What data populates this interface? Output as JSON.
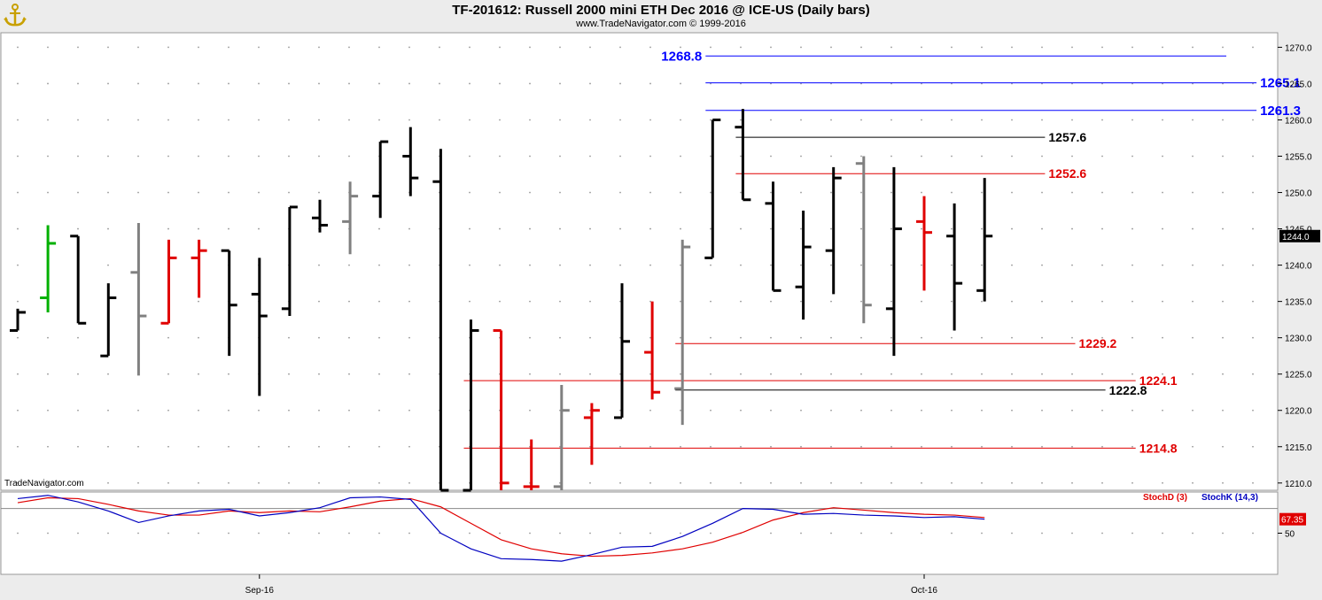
{
  "header": {
    "title": "TF-201612:  Russell 2000 mini ETH Dec 2016 @ ICE-US  (Daily bars)",
    "subtitle": "www.TradeNavigator.com © 1999-2016"
  },
  "watermark": "TradeNavigator.com",
  "icons": {
    "logo": "golden-anchor-icon"
  },
  "colors": {
    "black": "#000000",
    "red": "#e00000",
    "gray": "#808080",
    "green": "#00b000",
    "blue": "#0000ff",
    "stochD": "#e00000",
    "stochK": "#0000c0"
  },
  "chart_data": [
    {
      "type": "ohlc",
      "name": "price",
      "ylim": [
        1209,
        1272
      ],
      "yticks": [
        1210,
        1215,
        1220,
        1225,
        1230,
        1235,
        1240,
        1245,
        1250,
        1255,
        1260,
        1265,
        1270
      ],
      "ytick_labels": [
        "1210.0",
        "1215.0",
        "1220.0",
        "1225.0",
        "1230.0",
        "1235.0",
        "1240.0",
        "1245.0",
        "1250.0",
        "1255.0",
        "1260.0",
        "1265.0",
        "1270.0"
      ],
      "last_price_label": "1244.0",
      "xtick_labels": [
        {
          "bar": 8,
          "label": "Sep-16"
        },
        {
          "bar": 30,
          "label": "Oct-16"
        }
      ],
      "grid": true,
      "bars": [
        {
          "o": 1231.0,
          "h": 1234.0,
          "l": 1231.0,
          "c": 1233.5,
          "color": "black"
        },
        {
          "o": 1235.5,
          "h": 1245.5,
          "l": 1233.5,
          "c": 1243.0,
          "color": "green"
        },
        {
          "o": 1244.0,
          "h": 1244.0,
          "l": 1232.0,
          "c": 1232.0,
          "color": "black"
        },
        {
          "o": 1227.5,
          "h": 1237.5,
          "l": 1227.5,
          "c": 1235.5,
          "color": "black"
        },
        {
          "o": 1239.0,
          "h": 1245.8,
          "l": 1224.8,
          "c": 1233.0,
          "color": "gray"
        },
        {
          "o": 1232.0,
          "h": 1243.5,
          "l": 1232.0,
          "c": 1241.0,
          "color": "red"
        },
        {
          "o": 1241.0,
          "h": 1243.5,
          "l": 1235.5,
          "c": 1242.0,
          "color": "red"
        },
        {
          "o": 1242.0,
          "h": 1242.0,
          "l": 1227.5,
          "c": 1234.5,
          "color": "black"
        },
        {
          "o": 1236.0,
          "h": 1241.0,
          "l": 1222.0,
          "c": 1233.0,
          "color": "black"
        },
        {
          "o": 1234.0,
          "h": 1248.0,
          "l": 1233.0,
          "c": 1248.0,
          "color": "black"
        },
        {
          "o": 1246.5,
          "h": 1249.0,
          "l": 1244.5,
          "c": 1245.5,
          "color": "black"
        },
        {
          "o": 1246.0,
          "h": 1251.5,
          "l": 1241.5,
          "c": 1249.5,
          "color": "gray"
        },
        {
          "o": 1249.5,
          "h": 1257.0,
          "l": 1246.5,
          "c": 1257.0,
          "color": "black"
        },
        {
          "o": 1255.0,
          "h": 1259.0,
          "l": 1249.5,
          "c": 1252.0,
          "color": "black"
        },
        {
          "o": 1251.5,
          "h": 1256.0,
          "l": 1209.0,
          "c": 1209.0,
          "color": "black"
        },
        {
          "o": 1209.0,
          "h": 1232.5,
          "l": 1209.0,
          "c": 1231.0,
          "color": "black"
        },
        {
          "o": 1231.0,
          "h": 1231.0,
          "l": 1209.0,
          "c": 1210.0,
          "color": "red"
        },
        {
          "o": 1209.5,
          "h": 1216.0,
          "l": 1209.0,
          "c": 1209.5,
          "color": "red"
        },
        {
          "o": 1209.5,
          "h": 1223.5,
          "l": 1209.0,
          "c": 1220.0,
          "color": "gray"
        },
        {
          "o": 1219.0,
          "h": 1221.0,
          "l": 1212.5,
          "c": 1220.0,
          "color": "red"
        },
        {
          "o": 1219.0,
          "h": 1237.5,
          "l": 1219.0,
          "c": 1229.5,
          "color": "black"
        },
        {
          "o": 1228.0,
          "h": 1235.0,
          "l": 1221.5,
          "c": 1222.5,
          "color": "red"
        },
        {
          "o": 1223.0,
          "h": 1243.5,
          "l": 1218.0,
          "c": 1242.5,
          "color": "gray"
        },
        {
          "o": 1241.0,
          "h": 1260.0,
          "l": 1241.0,
          "c": 1260.0,
          "color": "black"
        },
        {
          "o": 1259.0,
          "h": 1261.5,
          "l": 1249.0,
          "c": 1249.0,
          "color": "black"
        },
        {
          "o": 1248.5,
          "h": 1251.5,
          "l": 1236.5,
          "c": 1236.5,
          "color": "black"
        },
        {
          "o": 1237.0,
          "h": 1247.5,
          "l": 1232.5,
          "c": 1242.5,
          "color": "black"
        },
        {
          "o": 1242.0,
          "h": 1253.5,
          "l": 1236.0,
          "c": 1252.0,
          "color": "black"
        },
        {
          "o": 1254.0,
          "h": 1255.0,
          "l": 1232.0,
          "c": 1234.5,
          "color": "gray"
        },
        {
          "o": 1234.0,
          "h": 1253.5,
          "l": 1227.5,
          "c": 1245.0,
          "color": "black"
        },
        {
          "o": 1246.0,
          "h": 1249.5,
          "l": 1236.5,
          "c": 1244.5,
          "color": "red"
        },
        {
          "o": 1244.0,
          "h": 1248.5,
          "l": 1231.0,
          "c": 1237.5,
          "color": "black"
        },
        {
          "o": 1236.5,
          "h": 1252.0,
          "l": 1235.0,
          "c": 1244.0,
          "color": "black"
        }
      ],
      "levels": [
        {
          "value": 1268.8,
          "label": "1268.8",
          "color": "blue",
          "from_bar": 23,
          "to_bar": 40,
          "label_side": "left"
        },
        {
          "value": 1265.1,
          "label": "1265.1",
          "color": "blue",
          "from_bar": 23,
          "to_bar": 41,
          "label_side": "right"
        },
        {
          "value": 1261.3,
          "label": "1261.3",
          "color": "blue",
          "from_bar": 23,
          "to_bar": 41,
          "label_side": "right"
        },
        {
          "value": 1257.6,
          "label": "1257.6",
          "color": "black",
          "from_bar": 24,
          "to_bar": 34,
          "label_side": "right"
        },
        {
          "value": 1252.6,
          "label": "1252.6",
          "color": "red",
          "from_bar": 24,
          "to_bar": 34,
          "label_side": "right"
        },
        {
          "value": 1229.2,
          "label": "1229.2",
          "color": "red",
          "from_bar": 22,
          "to_bar": 35,
          "label_side": "right"
        },
        {
          "value": 1224.1,
          "label": "1224.1",
          "color": "red",
          "from_bar": 15,
          "to_bar": 37,
          "label_side": "right"
        },
        {
          "value": 1222.8,
          "label": "1222.8",
          "color": "black",
          "from_bar": 22,
          "to_bar": 36,
          "label_side": "right"
        },
        {
          "value": 1214.8,
          "label": "1214.8",
          "color": "red",
          "from_bar": 15,
          "to_bar": 37,
          "label_side": "right"
        }
      ]
    },
    {
      "type": "line",
      "name": "stochastic",
      "ylim": [
        0,
        100
      ],
      "yticks": [
        50
      ],
      "ytick_labels": [
        "50"
      ],
      "reference_line": 80,
      "last_value_label": "67.35",
      "series": [
        {
          "name": "StochD (3)",
          "color": "stochD",
          "values": [
            87,
            93,
            92,
            85,
            77,
            72,
            72,
            77,
            75,
            77,
            76,
            82,
            89,
            92,
            82,
            62,
            42,
            31,
            25,
            22,
            23,
            26,
            31,
            39,
            51,
            66,
            75,
            81,
            78,
            75,
            73,
            72,
            69
          ]
        },
        {
          "name": "StochK (14,3)",
          "color": "stochK",
          "values": [
            92,
            96,
            88,
            77,
            63,
            71,
            77,
            79,
            71,
            75,
            81,
            93,
            94,
            91,
            50,
            31,
            19,
            18,
            16,
            24,
            33,
            34,
            46,
            62,
            80,
            79,
            73,
            74,
            72,
            71,
            69,
            70,
            67
          ]
        }
      ]
    }
  ]
}
